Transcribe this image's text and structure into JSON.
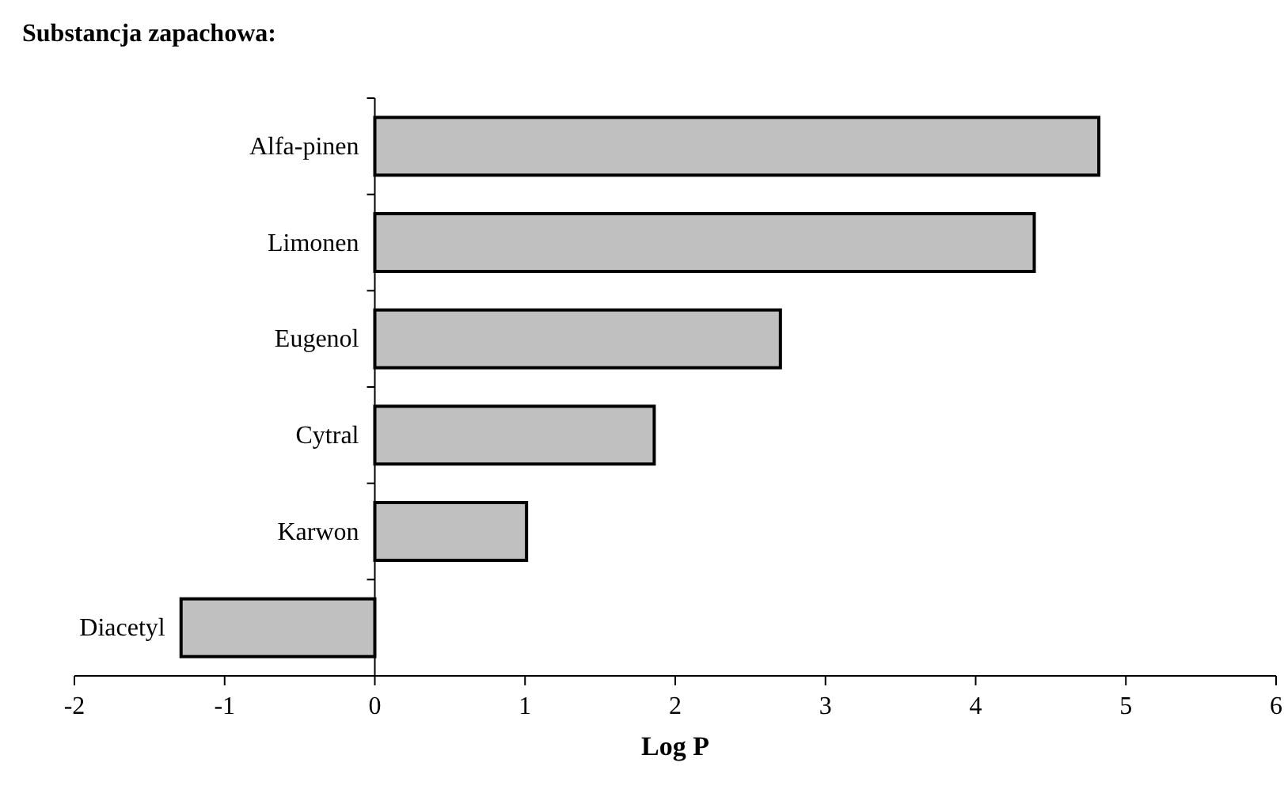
{
  "chart_data": {
    "type": "bar",
    "orientation": "horizontal",
    "title": "Substancja zapachowa:",
    "xlabel": "Log P",
    "categories": [
      "Alfa-pinen",
      "Limonen",
      "Eugenol",
      "Cytral",
      "Karwon",
      "Diacetyl"
    ],
    "values": [
      4.82,
      4.39,
      2.7,
      1.86,
      1.01,
      -1.29
    ],
    "color": "#c0c0c0",
    "xlim": [
      -2,
      6
    ],
    "xticks": [
      -2,
      -1,
      0,
      1,
      2,
      3,
      4,
      5,
      6
    ]
  }
}
